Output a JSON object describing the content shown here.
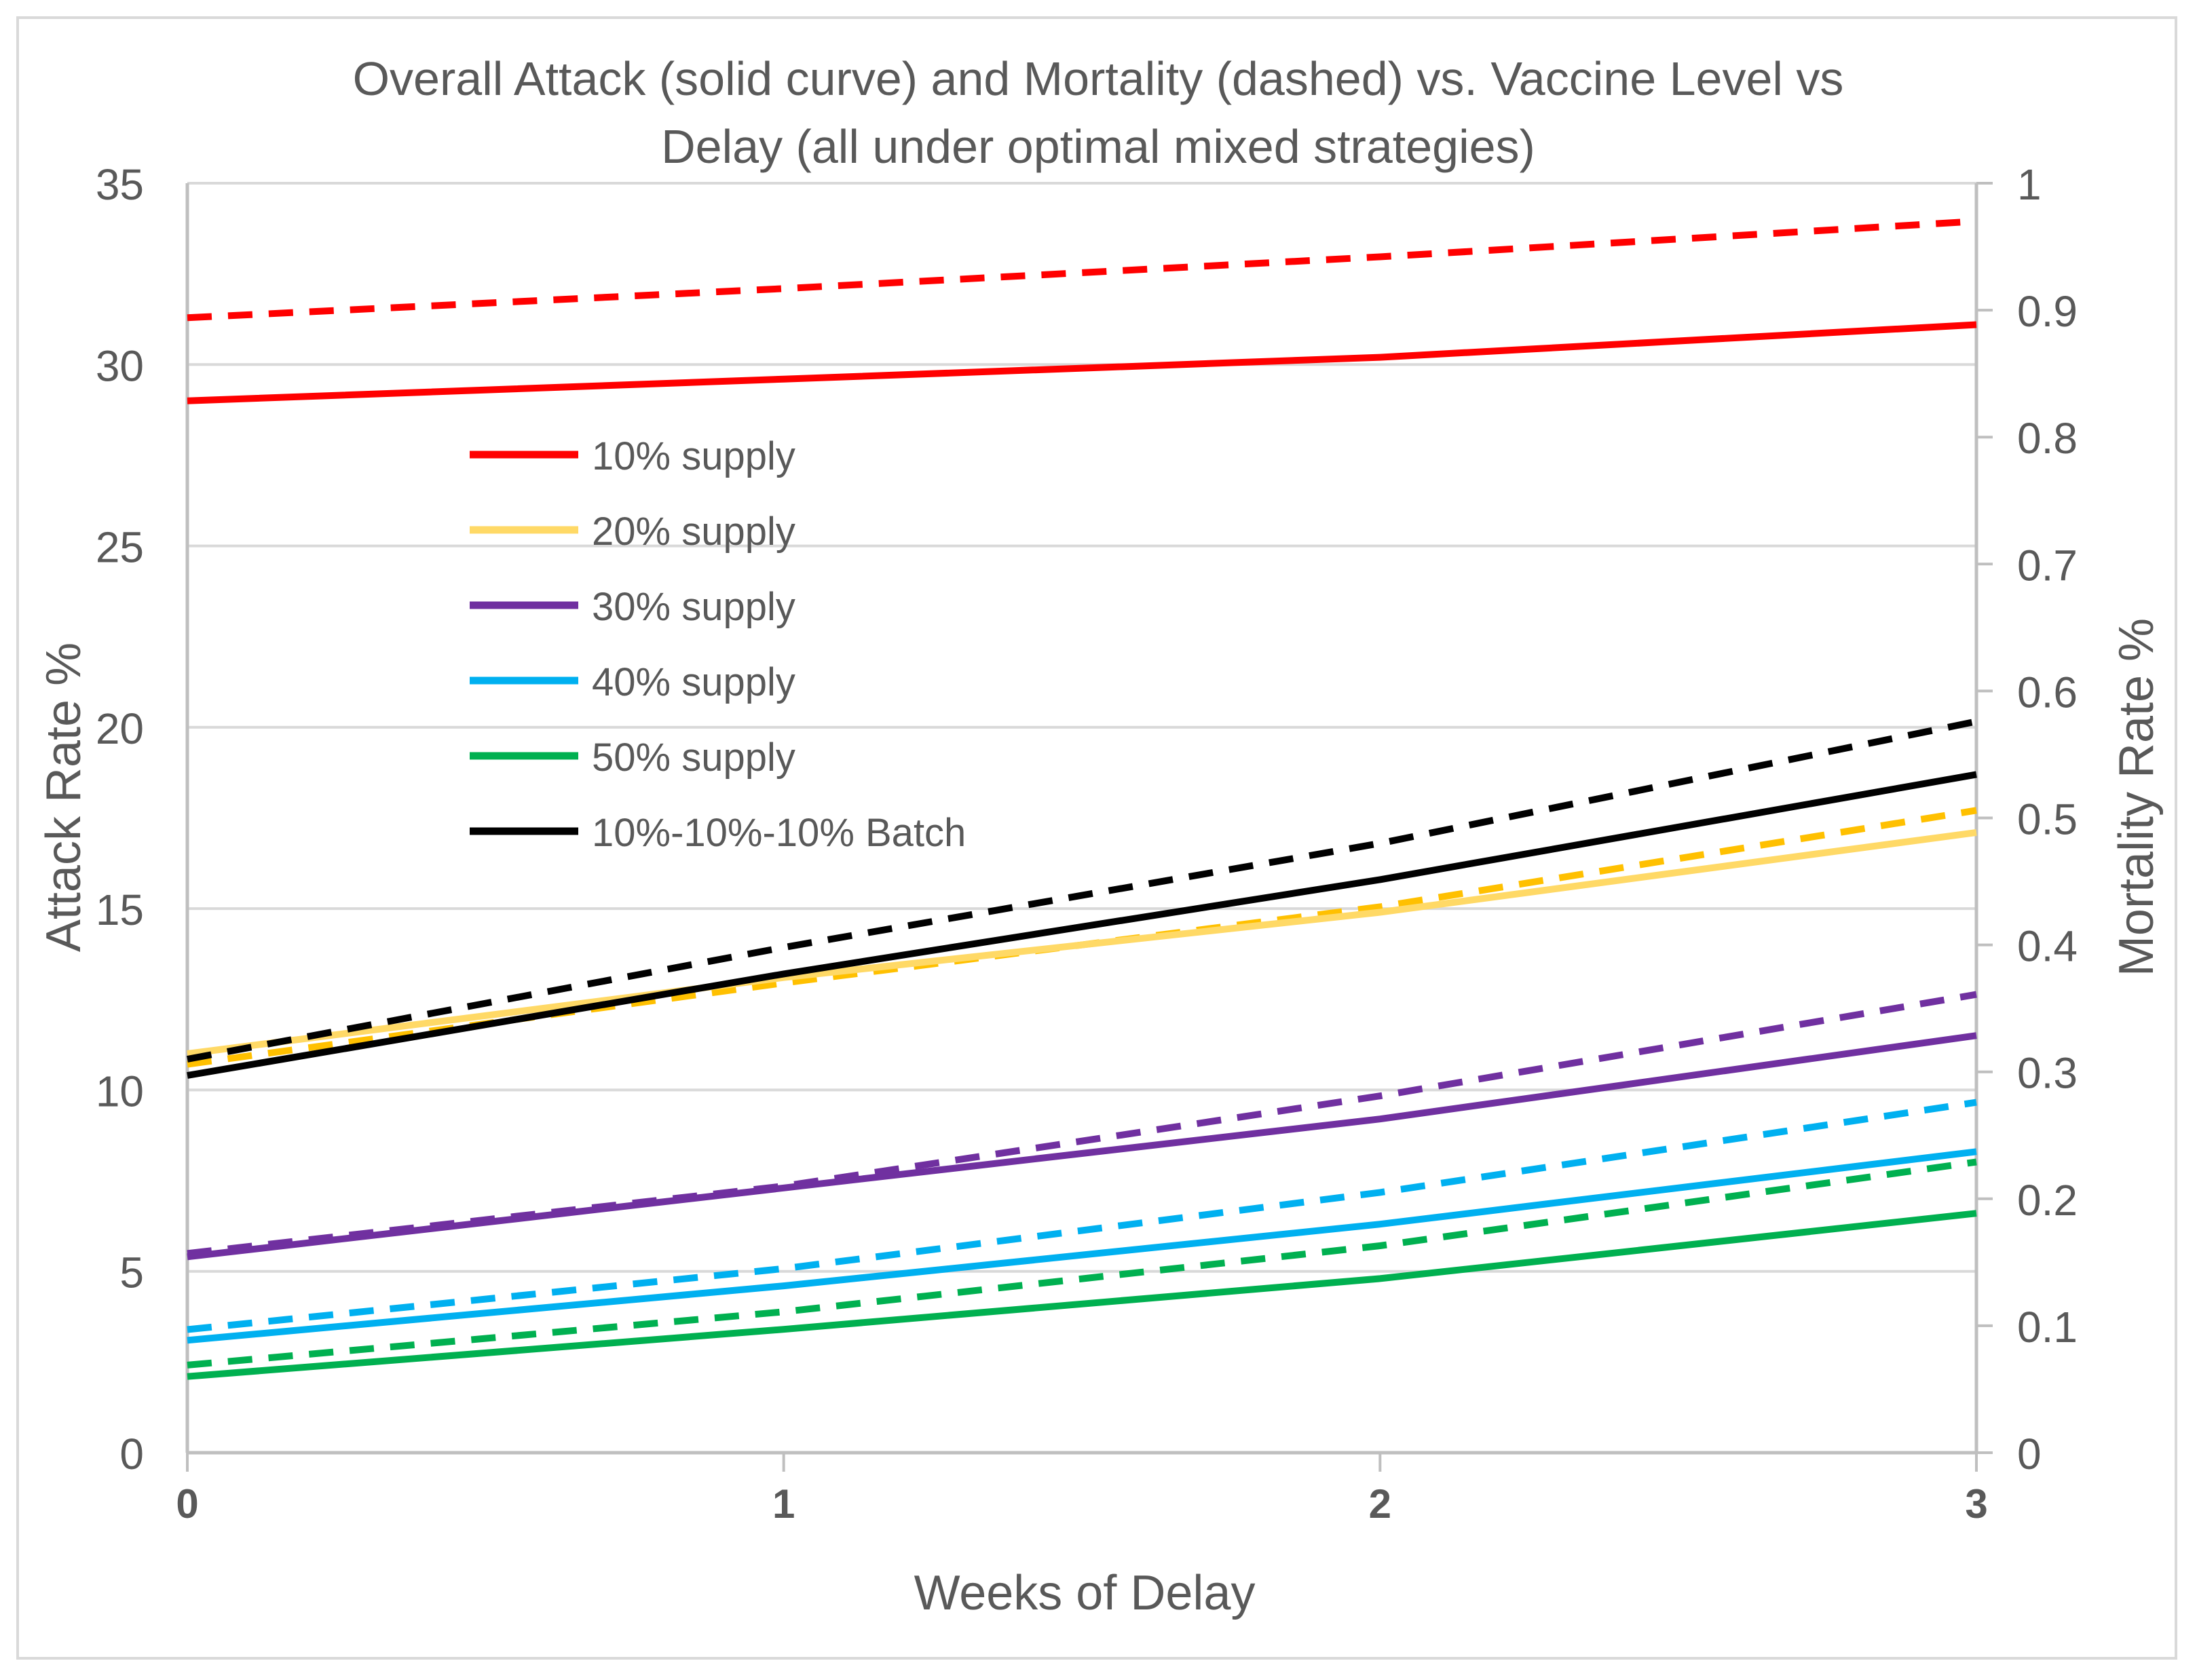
{
  "chart_data": {
    "type": "line",
    "title_lines": [
      "Overall Attack (solid curve) and Mortality (dashed) vs. Vaccine Level vs",
      "Delay (all under optimal mixed strategies)"
    ],
    "xlabel": "Weeks  of Delay",
    "ylabel_left": "Attack Rate %",
    "ylabel_right": "Mortality Rate %",
    "x": [
      0,
      1,
      2,
      3
    ],
    "xlim": [
      0,
      3
    ],
    "x_ticks": [
      "0",
      "1",
      "2",
      "3"
    ],
    "ylim_left": [
      0,
      35
    ],
    "y_ticks_left": [
      "0",
      "5",
      "10",
      "15",
      "20",
      "25",
      "30",
      "35"
    ],
    "ylim_right": [
      0,
      1
    ],
    "y_ticks_right": [
      "0",
      "0.1",
      "0.2",
      "0.3",
      "0.4",
      "0.5",
      "0.6",
      "0.7",
      "0.8",
      "0.9",
      "1"
    ],
    "gridlines": "horizontal",
    "legend_position": "upper-left inside plot",
    "series": [
      {
        "name": "10% supply",
        "color": "#ff0000",
        "attack": [
          29.0,
          29.6,
          30.2,
          31.1
        ],
        "mortality": [
          0.894,
          0.917,
          0.942,
          0.97
        ]
      },
      {
        "name": "20% supply",
        "color": "#ffd966",
        "dash_color": "#ffc000",
        "attack": [
          11.0,
          13.1,
          14.9,
          17.1
        ],
        "mortality": [
          0.306,
          0.37,
          0.43,
          0.506
        ]
      },
      {
        "name": "30% supply",
        "color": "#7030a0",
        "attack": [
          5.4,
          7.3,
          9.2,
          11.5
        ],
        "mortality": [
          0.157,
          0.21,
          0.281,
          0.361
        ]
      },
      {
        "name": "40% supply",
        "color": "#00b0f0",
        "attack": [
          3.1,
          4.6,
          6.3,
          8.3
        ],
        "mortality": [
          0.097,
          0.145,
          0.205,
          0.276
        ]
      },
      {
        "name": "50% supply",
        "color": "#00b050",
        "attack": [
          2.1,
          3.4,
          4.8,
          6.6
        ],
        "mortality": [
          0.069,
          0.111,
          0.163,
          0.229
        ]
      },
      {
        "name": "10%-10%-10% Batch",
        "color": "#000000",
        "attack": [
          10.4,
          13.2,
          15.8,
          18.7
        ],
        "mortality": [
          0.31,
          0.398,
          0.48,
          0.576
        ]
      }
    ]
  }
}
